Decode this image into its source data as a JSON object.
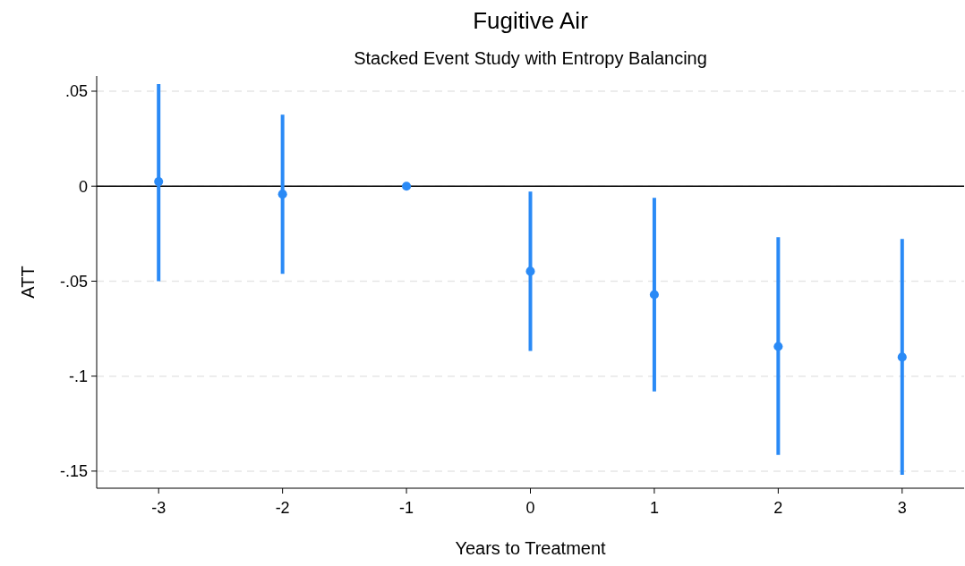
{
  "chart_data": {
    "type": "scatter",
    "title": "Fugitive Air",
    "subtitle": "Stacked Event Study with Entropy Balancing",
    "xlabel": "Years to Treatment",
    "ylabel": "ATT",
    "x": [
      -3,
      -2,
      -1,
      0,
      1,
      2,
      3
    ],
    "values": [
      0.0024,
      -0.0042,
      0,
      -0.0448,
      -0.0571,
      -0.0844,
      -0.09
    ],
    "errors": [
      [
        -0.05,
        0.0538
      ],
      [
        -0.0462,
        0.0377
      ],
      null,
      [
        -0.0868,
        -0.0028
      ],
      [
        -0.108,
        -0.0061
      ],
      [
        -0.1415,
        -0.0269
      ],
      [
        -0.1519,
        -0.0278
      ]
    ],
    "color": "#2a8af6",
    "marker": "circle",
    "xlim": [
      -3.5,
      3.5
    ],
    "xticks": [
      -3,
      -2,
      -1,
      0,
      1,
      2,
      3
    ],
    "ylim": [
      -0.159,
      0.058
    ],
    "yticks": [
      {
        "value": 0.05,
        "label": ".05"
      },
      0,
      {
        "value": -0.05,
        "label": "-.05"
      },
      {
        "value": -0.1,
        "label": "-.1"
      },
      {
        "value": -0.15,
        "label": "-.15"
      }
    ],
    "grid": "y",
    "ref_lines": [
      {
        "axis": "y",
        "value": 0,
        "color": "#000000"
      }
    ]
  }
}
